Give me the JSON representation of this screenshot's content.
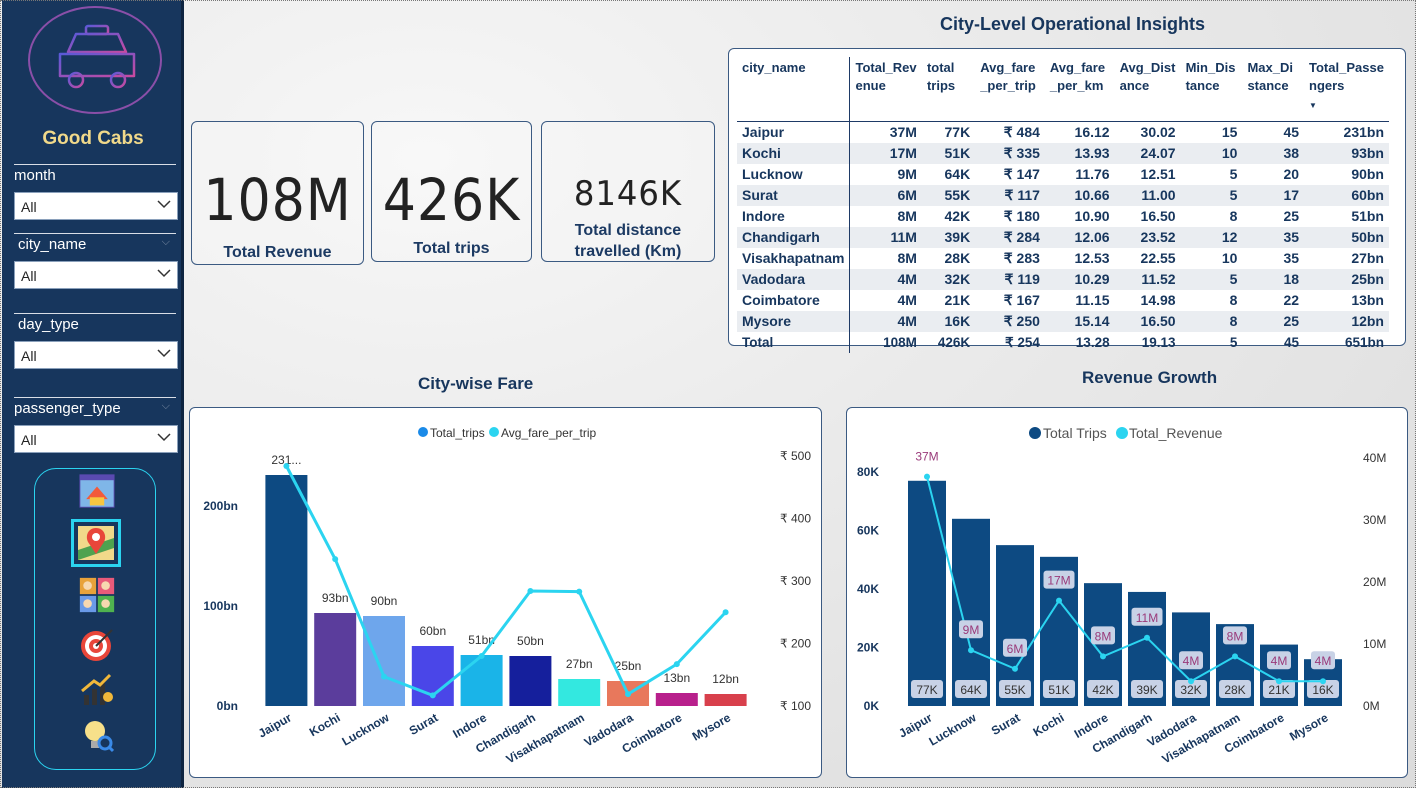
{
  "sidebar": {
    "brand": "Good Cabs",
    "filters": [
      {
        "label": "month",
        "value": "All"
      },
      {
        "label": "city_name",
        "value": "All"
      },
      {
        "label": "day_type",
        "value": "All"
      },
      {
        "label": "passenger_type",
        "value": "All"
      }
    ],
    "nav_icons": [
      "home-icon",
      "map-pin-icon",
      "passengers-icon",
      "target-icon",
      "growth-icon",
      "idea-icon"
    ]
  },
  "kpis": [
    {
      "value": "108M",
      "label": "Total Revenue"
    },
    {
      "value": "426K",
      "label": "Total trips"
    },
    {
      "value": "8146K",
      "label": "Total distance travelled (Km)"
    }
  ],
  "table": {
    "title": "City-Level Operational Insights",
    "headers": [
      "city_name",
      "Total_Rev enue",
      "total trips",
      "Avg_fare _per_trip",
      "Avg_fare _per_km",
      "Avg_Dist ance",
      "Min_Dis tance",
      "Max_Di stance",
      "Total_Passe ngers"
    ],
    "rows": [
      [
        "Jaipur",
        "37M",
        "77K",
        "₹ 484",
        "16.12",
        "30.02",
        "15",
        "45",
        "231bn"
      ],
      [
        "Kochi",
        "17M",
        "51K",
        "₹ 335",
        "13.93",
        "24.07",
        "10",
        "38",
        "93bn"
      ],
      [
        "Lucknow",
        "9M",
        "64K",
        "₹ 147",
        "11.76",
        "12.51",
        "5",
        "20",
        "90bn"
      ],
      [
        "Surat",
        "6M",
        "55K",
        "₹ 117",
        "10.66",
        "11.00",
        "5",
        "17",
        "60bn"
      ],
      [
        "Indore",
        "8M",
        "42K",
        "₹ 180",
        "10.90",
        "16.50",
        "8",
        "25",
        "51bn"
      ],
      [
        "Chandigarh",
        "11M",
        "39K",
        "₹ 284",
        "12.06",
        "23.52",
        "12",
        "35",
        "50bn"
      ],
      [
        "Visakhapatnam",
        "8M",
        "28K",
        "₹ 283",
        "12.53",
        "22.55",
        "10",
        "35",
        "27bn"
      ],
      [
        "Vadodara",
        "4M",
        "32K",
        "₹ 119",
        "10.29",
        "11.52",
        "5",
        "18",
        "25bn"
      ],
      [
        "Coimbatore",
        "4M",
        "21K",
        "₹ 167",
        "11.15",
        "14.98",
        "8",
        "22",
        "13bn"
      ],
      [
        "Mysore",
        "4M",
        "16K",
        "₹ 250",
        "15.14",
        "16.50",
        "8",
        "25",
        "12bn"
      ]
    ],
    "total": [
      "Total",
      "108M",
      "426K",
      "₹ 254",
      "13.28",
      "19.13",
      "5",
      "45",
      "651bn"
    ]
  },
  "chart_data": [
    {
      "type": "bar",
      "title": "City-wise Fare",
      "categories": [
        "Jaipur",
        "Kochi",
        "Lucknow",
        "Surat",
        "Indore",
        "Chandigarh",
        "Visakhapatnam",
        "Vadodara",
        "Coimbatore",
        "Mysore"
      ],
      "series": [
        {
          "name": "Total_trips",
          "values": [
            231,
            93,
            90,
            60,
            51,
            50,
            27,
            25,
            13,
            12
          ]
        },
        {
          "name": "Avg_fare_per_trip",
          "values": [
            484,
            335,
            147,
            117,
            180,
            284,
            283,
            119,
            167,
            250
          ]
        }
      ],
      "data_labels": [
        "231...",
        "93bn",
        "90bn",
        "60bn",
        "51bn",
        "50bn",
        "27bn",
        "25bn",
        "13bn",
        "12bn"
      ],
      "bar_colors": [
        "#0d4a82",
        "#5b3d9c",
        "#6ea6ec",
        "#4a46e8",
        "#1ab4e8",
        "#151f9c",
        "#33e8e0",
        "#e8785c",
        "#b8208c",
        "#d8404c"
      ],
      "line_color": "#2bd4f0",
      "y_left_ticks": [
        "0bn",
        "100bn",
        "200bn"
      ],
      "y_right_ticks": [
        "₹ 100",
        "₹ 200",
        "₹ 300",
        "₹ 400",
        "₹ 500"
      ],
      "ylim_left": [
        0,
        250
      ],
      "ylim_right": [
        100,
        500
      ],
      "legend": "top-center"
    },
    {
      "type": "bar",
      "title": "Revenue Growth",
      "categories": [
        "Jaipur",
        "Lucknow",
        "Surat",
        "Kochi",
        "Indore",
        "Chandigarh",
        "Vadodara",
        "Visakhapatnam",
        "Coimbatore",
        "Mysore"
      ],
      "series": [
        {
          "name": "Total Trips",
          "values": [
            77,
            64,
            55,
            51,
            42,
            39,
            32,
            28,
            21,
            16
          ]
        },
        {
          "name": "Total_Revenue",
          "values": [
            37,
            9,
            6,
            17,
            8,
            11,
            4,
            8,
            4,
            4
          ]
        }
      ],
      "bar_labels": [
        "77K",
        "64K",
        "55K",
        "51K",
        "42K",
        "39K",
        "32K",
        "28K",
        "21K",
        "16K"
      ],
      "line_labels": [
        "37M",
        "9M",
        "6M",
        "17M",
        "8M",
        "11M",
        "4M",
        "8M",
        "4M",
        "4M"
      ],
      "bar_color": "#0d4a82",
      "line_color": "#2bd4f0",
      "y_left_ticks": [
        "0K",
        "20K",
        "40K",
        "60K",
        "80K"
      ],
      "y_right_ticks": [
        "0M",
        "10M",
        "20M",
        "30M",
        "40M"
      ],
      "ylim_left": [
        0,
        80
      ],
      "ylim_right": [
        0,
        40
      ],
      "legend": "top-center"
    }
  ]
}
